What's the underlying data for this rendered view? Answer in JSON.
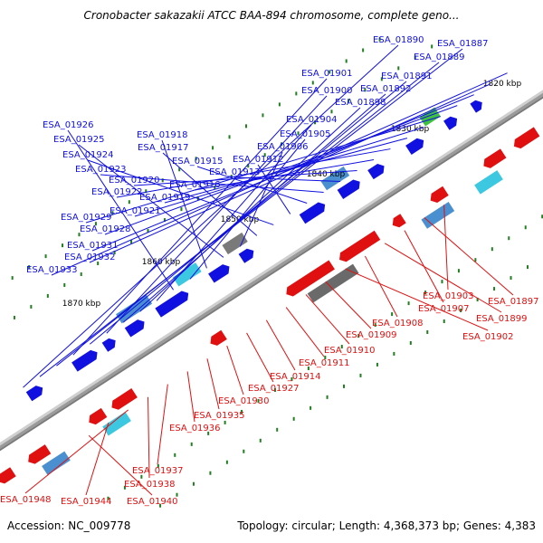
{
  "title": "Cronobacter sakazakii ATCC BAA-894 chromosome, complete geno...",
  "footer": {
    "accession": "Accession: NC_009778",
    "summary": "Topology: circular; Length: 4,368,373 bp; Genes: 4,383"
  },
  "colors": {
    "forward_gene": "#1010e0",
    "reverse_gene": "#e01010",
    "backbone": "#909090",
    "tick": "#208020"
  },
  "scale_marks": [
    "1820 kbp",
    "1830 kbp",
    "1840 kbp",
    "1850 kbp",
    "1860 kbp",
    "1870 kbp"
  ],
  "top_labels": [
    "ESA_01890",
    "ESA_01887",
    "ESA_01889",
    "ESA_01901",
    "ESA_01891",
    "ESA_01900",
    "ESA_01892",
    "ESA_01898",
    "ESA_01904",
    "ESA_01926",
    "ESA_01905",
    "ESA_01918",
    "ESA_01925",
    "ESA_01906",
    "ESA_01917",
    "ESA_01924",
    "ESA_01912",
    "ESA_01915",
    "ESA_01923",
    "ESA_01913",
    "ESA_01920",
    "ESA_01916",
    "ESA_01922",
    "ESA_01919",
    "ESA_01921",
    "ESA_01929",
    "ESA_01928",
    "ESA_01931",
    "ESA_01932",
    "ESA_01933"
  ],
  "bottom_labels": [
    "ESA_01903",
    "ESA_01897",
    "ESA_01907",
    "ESA_01899",
    "ESA_01908",
    "ESA_01902",
    "ESA_01909",
    "ESA_01910",
    "ESA_01911",
    "ESA_01914",
    "ESA_01927",
    "ESA_01930",
    "ESA_01935",
    "ESA_01936",
    "ESA_01937",
    "ESA_01938",
    "ESA_01948",
    "ESA_01944",
    "ESA_01940"
  ]
}
